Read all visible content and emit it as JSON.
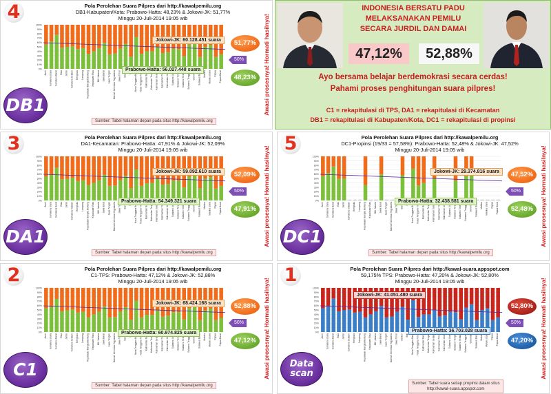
{
  "colors": {
    "jk": "#f06b1a",
    "ph": "#7bbf3a",
    "jk_scan": "#c8261c",
    "ph_scan": "#3a7ec8",
    "fifty_line": "#5a2aa0",
    "accent_text": "#d81f1f"
  },
  "side_text": "Awasi prosesnya! Hormati hasilnya!",
  "provinces": [
    "Aceh",
    "Sumatera Utara",
    "Sumatera Barat",
    "Riau",
    "Jambi",
    "Sumatera Selatan",
    "Bengkulu",
    "Lampung",
    "Kepulauan Bangka Belitung",
    "Kepulauan Riau",
    "DKI Jakarta",
    "Jawa Barat",
    "Jawa Tengah",
    "Daerah Istimewa Yogyakarta",
    "Jawa Timur",
    "Banten",
    "Bali",
    "Nusa Tenggara Barat",
    "Nusa Tenggara Timur",
    "Kalimantan Barat",
    "Kalimantan Tengah",
    "Kalimantan Selatan",
    "Kalimantan Timur",
    "Kalimantan Utara",
    "Sulawesi Utara",
    "Sulawesi Tengah",
    "Sulawesi Selatan",
    "Sulawesi Tenggara",
    "Gorontalo",
    "Sulawesi Barat",
    "Maluku",
    "Maluku Utara",
    "Papua",
    "Papua Barat"
  ],
  "info": {
    "headline": [
      "INDONESIA BERSATU PADU",
      "MELAKSANAKAN PEMILU",
      "SECARA JURDIL DAN DAMAI"
    ],
    "pct_left": "47,12%",
    "pct_right": "52,88%",
    "call": [
      "Ayo bersama belajar berdemokrasi secara cerdas!",
      "Pahami proses penghitungan suara pilpres!"
    ],
    "legend": [
      "C1 = rekapitulasi di TPS, DA1 = rekapitulasi di Kecamatan",
      "DB1 = rekapitulasi di Kabupaten/Kota, DC1 = rekapitulasi di propinsi"
    ]
  },
  "panels": {
    "db1": {
      "number": "4",
      "label": "DB1",
      "title1": "Pola Perolehan Suara Pilpres dari http://kawalpemilu.org",
      "title2": "DB1-Kabupaten/Kota: Prabowo-Hatta: 48,23% & Jokowi-JK: 51,77%",
      "title3": "Minggu 20-Juli-2014 19:05 wib",
      "jk_box": "Jokowi-JK: 60.128.451 suara",
      "ph_box": "Prabowo-Hatta: 56.027.448 suara",
      "jk_pct": "51,77%",
      "ph_pct": "48,23%",
      "fifty": "50%",
      "source": "Sumber: Tabel halaman depan pada situs http://kawalpemilu.org"
    },
    "da1": {
      "number": "3",
      "label": "DA1",
      "title1": "Pola Perolehan Suara Pilpres dari http://kawalpemilu.org",
      "title2": "DA1-Kecamatan: Prabowo-Hatta: 47,91% & Jokowi-JK: 52,09%",
      "title3": "Minggu 20-Juli-2014 19:05 wib",
      "jk_box": "Jokowi-JK: 59.092.610 suara",
      "ph_box": "Prabowo-Hatta: 54.349.321 suara",
      "jk_pct": "52,09%",
      "ph_pct": "47,91%",
      "fifty": "50%",
      "source": "Sumber: Tabel halaman depan pada situs http://kawalpemilu.org"
    },
    "dc1": {
      "number": "5",
      "label": "DC1",
      "title1": "Pola Perolehan Suara Pilpres dari http://kawalpemilu.org",
      "title2": "DC1-Propinsi (19/33 = 57,58%): Prabowo-Hatta: 52,48% & Jokowi-JK: 47,52%",
      "title3": "Minggu 20-Juli-2014 19:05 wib",
      "jk_box": "Jokowi-JK: 29.374.816 suara",
      "ph_box": "Prabowo-Hatta: 32.438.581 suara",
      "jk_pct": "47,52%",
      "ph_pct": "52,48%",
      "fifty": "50%",
      "source": "Sumber: Tabel halaman depan pada situs http://kawalpemilu.org"
    },
    "c1": {
      "number": "2",
      "label": "C1",
      "title1": "Pola Perolehan Suara Pilpres dari http://kawalpemilu.org",
      "title2": "C1-TPS: Prabowo-Hatta: 47,12% & Jokowi-JK: 52,88%",
      "title3": "Minggu 20-Juli-2014 19:05 wib",
      "jk_box": "Jokowi-JK: 68.424.168 suara",
      "ph_box": "Prabowo-Hatta: 60.974.825 suara",
      "jk_pct": "52,88%",
      "ph_pct": "47,12%",
      "fifty": "50%",
      "source": "Sumber: Tabel halaman depan pada situs http://kawalpemilu.org"
    },
    "scan": {
      "number": "1",
      "label1": "Data",
      "label2": "scan",
      "title1": "Pola Perolehan Suara Pilpres dari http://kawal-suara.appspot.com",
      "title2": "59,175% TPS: Prabowo-Hatta: 47,20% & Jokowi-JK: 52,80%",
      "title3": "Minggu 20-Juli-2014 19:05 wib",
      "jk_box": "Jokowi-JK: 41.051.480 suara",
      "ph_box": "Prabowo-Hatta: 36.703.028 suara",
      "jk_pct": "52,80%",
      "ph_pct": "47,20%",
      "fifty": "50%",
      "source1": "Sumber: Tabel suara setiap propinsi dalam situs",
      "source2": "http://kawal-suara.appspot.com"
    }
  },
  "chart_data": [
    {
      "id": "db1",
      "type": "bar",
      "stacked": true,
      "ylim": [
        0,
        100
      ],
      "ticks": [
        "0%",
        "10%",
        "20%",
        "30%",
        "40%",
        "50%",
        "60%",
        "70%",
        "80%",
        "90%",
        "100%"
      ],
      "series": [
        {
          "name": "Prabowo-Hatta",
          "values": [
            55,
            62,
            77,
            48,
            50,
            51,
            45,
            47,
            34,
            40,
            47,
            59,
            33,
            35,
            46,
            57,
            28,
            72,
            34,
            40,
            40,
            50,
            36,
            38,
            46,
            45,
            29,
            55,
            63,
            27,
            50,
            54,
            27,
            33
          ]
        },
        {
          "name": "Jokowi-JK",
          "values": [
            45,
            38,
            23,
            52,
            50,
            49,
            55,
            53,
            66,
            60,
            53,
            41,
            67,
            65,
            54,
            43,
            72,
            28,
            66,
            60,
            60,
            50,
            64,
            62,
            54,
            55,
            71,
            45,
            37,
            73,
            50,
            46,
            73,
            67
          ]
        }
      ]
    },
    {
      "id": "da1",
      "type": "bar",
      "stacked": true,
      "ylim": [
        0,
        100
      ],
      "ticks": [
        "0%",
        "10%",
        "20%",
        "30%",
        "40%",
        "50%",
        "60%",
        "70%",
        "80%",
        "90%",
        "100%"
      ],
      "series": [
        {
          "name": "Prabowo-Hatta",
          "values": [
            54,
            58,
            74,
            48,
            49,
            51,
            44,
            46,
            35,
            40,
            46,
            58,
            33,
            34,
            46,
            56,
            28,
            70,
            33,
            39,
            40,
            50,
            36,
            37,
            45,
            45,
            30,
            54,
            62,
            28,
            50,
            53,
            27,
            33
          ]
        },
        {
          "name": "Jokowi-JK",
          "values": [
            46,
            42,
            26,
            52,
            51,
            49,
            56,
            54,
            65,
            60,
            54,
            42,
            67,
            66,
            54,
            44,
            72,
            30,
            67,
            61,
            60,
            50,
            64,
            63,
            55,
            55,
            70,
            46,
            38,
            72,
            50,
            47,
            73,
            67
          ]
        }
      ]
    },
    {
      "id": "dc1",
      "type": "bar",
      "stacked": true,
      "ylim": [
        0,
        100
      ],
      "ticks": [
        "0%",
        "10%",
        "20%",
        "30%",
        "40%",
        "50%",
        "60%",
        "70%",
        "80%",
        "90%",
        "100%"
      ],
      "series": [
        {
          "name": "Prabowo-Hatta",
          "values": [
            55,
            62,
            77,
            49,
            50,
            0,
            0,
            0,
            35,
            0,
            0,
            59,
            0,
            0,
            0,
            57,
            0,
            72,
            34,
            40,
            0,
            50,
            0,
            0,
            0,
            45,
            0,
            55,
            63,
            0,
            0,
            0,
            0,
            0
          ]
        },
        {
          "name": "Jokowi-JK",
          "values": [
            45,
            38,
            23,
            51,
            50,
            0,
            0,
            0,
            65,
            0,
            0,
            41,
            0,
            0,
            0,
            43,
            0,
            28,
            66,
            60,
            0,
            50,
            0,
            0,
            0,
            55,
            0,
            45,
            37,
            0,
            0,
            0,
            0,
            0
          ]
        }
      ]
    },
    {
      "id": "c1",
      "type": "bar",
      "stacked": true,
      "ylim": [
        0,
        100
      ],
      "ticks": [
        "0%",
        "10%",
        "20%",
        "30%",
        "40%",
        "50%",
        "60%",
        "70%",
        "80%",
        "90%",
        "100%"
      ],
      "series": [
        {
          "name": "Prabowo-Hatta",
          "values": [
            54,
            57,
            75,
            47,
            49,
            51,
            44,
            46,
            33,
            40,
            46,
            58,
            33,
            34,
            46,
            56,
            28,
            71,
            33,
            39,
            39,
            49,
            35,
            37,
            45,
            45,
            29,
            54,
            62,
            27,
            49,
            53,
            27,
            32
          ]
        },
        {
          "name": "Jokowi-JK",
          "values": [
            46,
            43,
            25,
            53,
            51,
            49,
            56,
            54,
            67,
            60,
            54,
            42,
            67,
            66,
            54,
            44,
            72,
            29,
            67,
            61,
            61,
            51,
            65,
            63,
            55,
            55,
            71,
            46,
            38,
            73,
            51,
            47,
            73,
            68
          ]
        }
      ]
    },
    {
      "id": "scan",
      "type": "bar",
      "stacked": true,
      "ylim": [
        0,
        100
      ],
      "ticks": [
        "0%",
        "10%",
        "20%",
        "30%",
        "40%",
        "50%",
        "60%",
        "70%",
        "80%",
        "90%",
        "100%"
      ],
      "series": [
        {
          "name": "Prabowo-Hatta",
          "values": [
            54,
            58,
            76,
            47,
            50,
            51,
            44,
            46,
            33,
            40,
            47,
            59,
            33,
            35,
            46,
            57,
            28,
            72,
            34,
            40,
            40,
            50,
            36,
            38,
            46,
            45,
            29,
            55,
            63,
            27,
            50,
            54,
            27,
            33
          ]
        },
        {
          "name": "Jokowi-JK",
          "values": [
            46,
            42,
            24,
            53,
            50,
            49,
            56,
            54,
            67,
            60,
            53,
            41,
            67,
            65,
            54,
            43,
            72,
            28,
            66,
            60,
            60,
            50,
            64,
            62,
            54,
            55,
            71,
            45,
            37,
            73,
            50,
            46,
            73,
            67
          ]
        }
      ]
    }
  ]
}
